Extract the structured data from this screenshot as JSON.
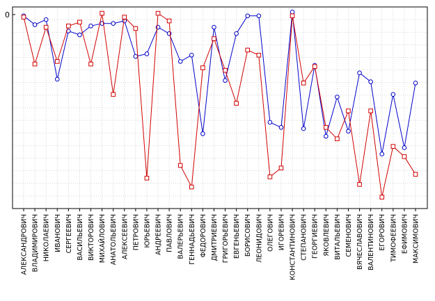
{
  "chart_data": {
    "type": "line",
    "title": "",
    "xlabel": "",
    "ylabel": "",
    "grid": true,
    "ylim": [
      -15.3,
      0.6
    ],
    "y_ticks": [
      {
        "value": 0,
        "label": "0"
      }
    ],
    "categories": [
      "АЛЕКСАНДРОВИЧ",
      "ВЛАДИМИРОВИЧ",
      "НИКОЛАЕВИЧ",
      "ИВАНОВИЧ",
      "СЕРГЕЕВИЧ",
      "ВАСИЛЬЕВИЧ",
      "ВИКТОРОВИЧ",
      "МИХАЙЛОВИЧ",
      "АНАТОЛЬЕВИЧ",
      "АЛЕКСЕЕВИЧ",
      "ПЕТРОВИЧ",
      "ЮРЬЕВИЧ",
      "АНДРЕЕВИЧ",
      "ПАВЛОВИЧ",
      "ВАЛЕРЬЕВИЧ",
      "ГЕННАДЬЕВИЧ",
      "ФЕДОРОВИЧ",
      "ДМИТРИЕВИЧ",
      "ГРИГОРЬЕВИЧ",
      "ЕВГЕНЬЕВИЧ",
      "БОРИСОВИЧ",
      "ЛЕОНИДОВИЧ",
      "ОЛЕГОВИЧ",
      "ИГОРЕВИЧ",
      "КОНСТАНТИНОВИЧ",
      "СТЕПАНОВИЧ",
      "ГЕОРГИЕВИЧ",
      "ЯКОВЛЕВИЧ",
      "ВИТАЛЬЕВИЧ",
      "СЕМЕНОВИЧ",
      "ВЯЧЕСЛАВОВИЧ",
      "ВАЛЕНТИНОВИЧ",
      "ЕГОРОВИЧ",
      "ТИМОФЕЕВИЧ",
      "ЕФИМОВИЧ",
      "МАКСИМОВИЧ"
    ],
    "series": [
      {
        "color": "#0000c8",
        "marker": "circle",
        "values": [
          -0.1,
          -0.8,
          -0.4,
          -5.1,
          -1.3,
          -1.6,
          -0.9,
          -0.7,
          -0.7,
          -0.5,
          -3.3,
          -3.1,
          -1.0,
          -1.5,
          -3.7,
          -3.2,
          -9.4,
          -1.0,
          -5.2,
          -1.5,
          -0.1,
          -0.1,
          -8.5,
          -8.9,
          0.2,
          -9.0,
          -4.0,
          -9.6,
          -6.5,
          -9.2,
          -4.6,
          -5.3,
          -11.0,
          -6.3,
          -10.5,
          -5.4
        ]
      },
      {
        "color": "#d00000",
        "marker": "square",
        "values": [
          -0.2,
          -3.9,
          -1.0,
          -3.7,
          -0.9,
          -0.6,
          -3.9,
          0.1,
          -6.3,
          -0.2,
          -1.1,
          -12.9,
          0.1,
          -0.5,
          -11.9,
          -13.6,
          -4.2,
          -1.9,
          -4.4,
          -7.0,
          -2.8,
          -3.2,
          -12.8,
          -12.1,
          -0.1,
          -5.4,
          -4.1,
          -8.9,
          -9.8,
          -7.6,
          -13.4,
          -7.6,
          -14.4,
          -10.4,
          -11.2,
          -12.6
        ]
      }
    ]
  }
}
